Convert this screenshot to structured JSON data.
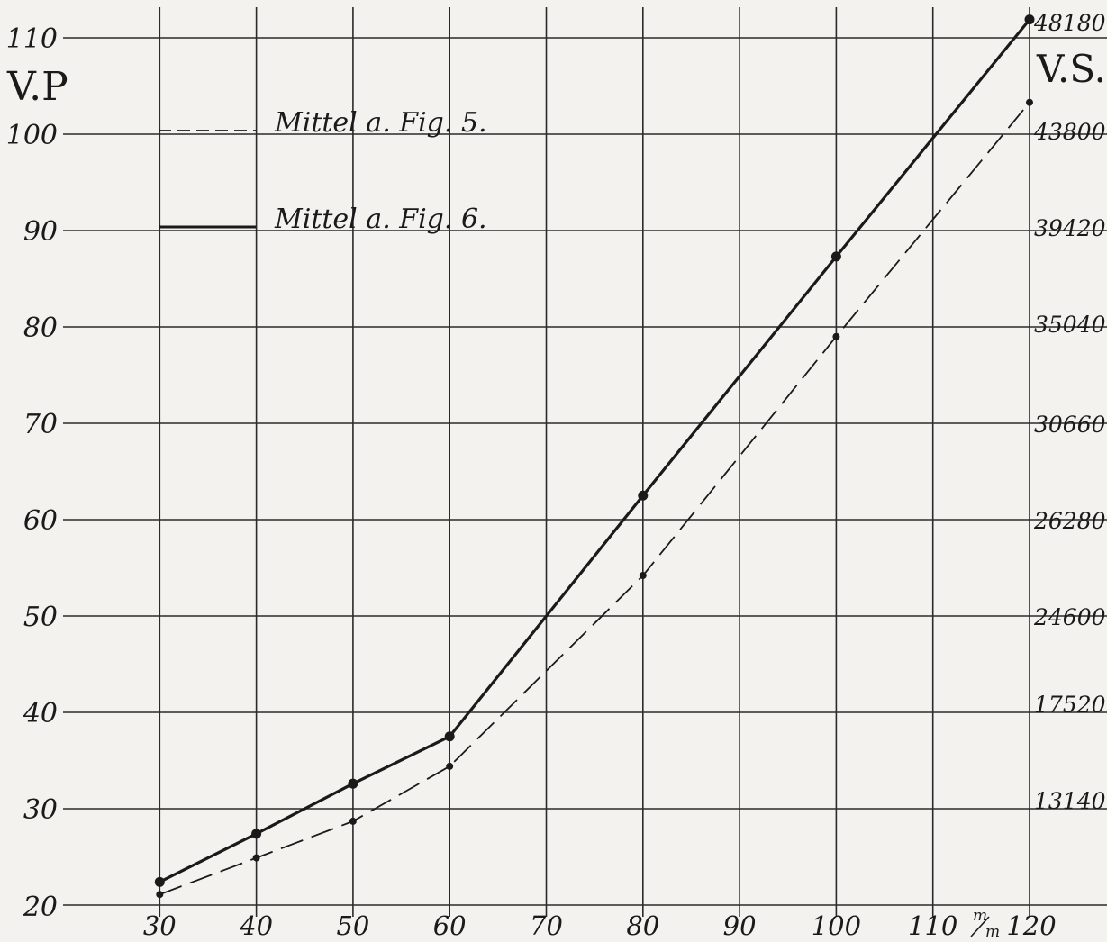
{
  "chart_data": {
    "type": "line",
    "title": "",
    "ylabel_left": "V.P",
    "ylabel_right": "V.S.",
    "x_unit": "m/m",
    "x_unit_num": "m",
    "x_unit_den": "m",
    "xlim": [
      20,
      120
    ],
    "ylim": [
      20,
      110
    ],
    "grid": true,
    "x_ticks": [
      "30",
      "40",
      "50",
      "60",
      "70",
      "80",
      "90",
      "100",
      "110",
      "120"
    ],
    "y_ticks_left": [
      "20",
      "30",
      "40",
      "50",
      "60",
      "70",
      "80",
      "90",
      "100",
      "110"
    ],
    "y_ticks_right": [
      "13140",
      "17520",
      "24600",
      "26280",
      "30660",
      "35040",
      "39420",
      "43800",
      "48180"
    ],
    "legend": [
      {
        "label": "Mittel a. Fig. 5.",
        "style": "dashed"
      },
      {
        "label": "Mittel a. Fig. 6.",
        "style": "solid"
      }
    ],
    "series": [
      {
        "name": "Mittel a. Fig. 5.",
        "style": "dashed",
        "x": [
          30,
          40,
          50,
          60,
          80,
          100,
          120
        ],
        "y": [
          21.1,
          24.9,
          28.7,
          34.4,
          54.2,
          79.0,
          103.3
        ]
      },
      {
        "name": "Mittel a. Fig. 6.",
        "style": "solid",
        "x": [
          30,
          40,
          50,
          60,
          80,
          100,
          120
        ],
        "y": [
          22.4,
          27.4,
          32.6,
          37.5,
          62.5,
          87.3,
          111.9
        ]
      }
    ],
    "colors": {
      "ink": "#1a1a1a",
      "grid": "#2a2a2a",
      "paper": "#f3f2ee"
    }
  }
}
